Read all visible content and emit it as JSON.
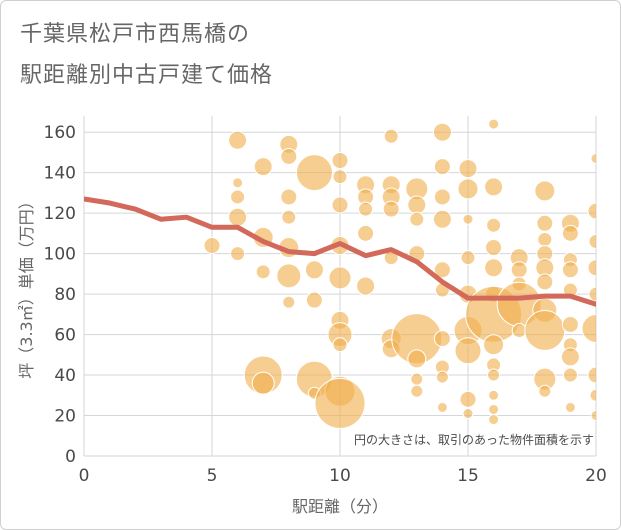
{
  "header": {
    "title_line1": "千葉県松戸市西馬橋の",
    "title_line2": "駅距離別中古戸建て価格"
  },
  "chart_data": {
    "type": "scatter",
    "xlabel": "駅距離（分）",
    "ylabel": "坪（3.3㎡）単価（万円）",
    "xlim": [
      0,
      20
    ],
    "ylim": [
      0,
      168
    ],
    "xticks": [
      0,
      5,
      10,
      15,
      20
    ],
    "yticks": [
      0,
      20,
      40,
      60,
      80,
      100,
      120,
      140,
      160
    ],
    "grid": true,
    "note": "円の大きさは、取引のあった物件面積を示す",
    "colors": {
      "bubble": "#f0b04f",
      "line": "#d2695a",
      "grid": "#d4d6da"
    },
    "line": {
      "x": [
        0,
        1,
        2,
        3,
        4,
        5,
        6,
        7,
        8,
        9,
        10,
        11,
        12,
        13,
        14,
        15,
        16,
        17,
        18,
        19,
        20
      ],
      "y": [
        127,
        125,
        122,
        117,
        118,
        113,
        113,
        106,
        101,
        100,
        105,
        99,
        102,
        96,
        86,
        78,
        78,
        78,
        79,
        79,
        75
      ]
    },
    "bubbles": [
      {
        "x": 5,
        "y": 104,
        "s": 8
      },
      {
        "x": 6,
        "y": 156,
        "s": 9
      },
      {
        "x": 6,
        "y": 135,
        "s": 5
      },
      {
        "x": 6,
        "y": 128,
        "s": 7
      },
      {
        "x": 6,
        "y": 118,
        "s": 9
      },
      {
        "x": 6,
        "y": 100,
        "s": 7
      },
      {
        "x": 7,
        "y": 143,
        "s": 9
      },
      {
        "x": 7,
        "y": 108,
        "s": 10
      },
      {
        "x": 7,
        "y": 91,
        "s": 7
      },
      {
        "x": 7,
        "y": 40,
        "s": 19
      },
      {
        "x": 7,
        "y": 36,
        "s": 11
      },
      {
        "x": 8,
        "y": 154,
        "s": 9
      },
      {
        "x": 8,
        "y": 148,
        "s": 8
      },
      {
        "x": 8,
        "y": 128,
        "s": 8
      },
      {
        "x": 8,
        "y": 118,
        "s": 7
      },
      {
        "x": 8,
        "y": 103,
        "s": 10
      },
      {
        "x": 8,
        "y": 89,
        "s": 12
      },
      {
        "x": 8,
        "y": 76,
        "s": 6
      },
      {
        "x": 9,
        "y": 140,
        "s": 18
      },
      {
        "x": 9,
        "y": 92,
        "s": 9
      },
      {
        "x": 9,
        "y": 77,
        "s": 8
      },
      {
        "x": 9,
        "y": 38,
        "s": 18
      },
      {
        "x": 9,
        "y": 31,
        "s": 6
      },
      {
        "x": 10,
        "y": 146,
        "s": 8
      },
      {
        "x": 10,
        "y": 138,
        "s": 7
      },
      {
        "x": 10,
        "y": 124,
        "s": 8
      },
      {
        "x": 10,
        "y": 104,
        "s": 9
      },
      {
        "x": 10,
        "y": 88,
        "s": 11
      },
      {
        "x": 10,
        "y": 67,
        "s": 9
      },
      {
        "x": 10,
        "y": 60,
        "s": 12
      },
      {
        "x": 10,
        "y": 55,
        "s": 7
      },
      {
        "x": 10,
        "y": 32,
        "s": 15
      },
      {
        "x": 10,
        "y": 26,
        "s": 25
      },
      {
        "x": 11,
        "y": 134,
        "s": 9
      },
      {
        "x": 11,
        "y": 128,
        "s": 8
      },
      {
        "x": 11,
        "y": 122,
        "s": 7
      },
      {
        "x": 11,
        "y": 110,
        "s": 8
      },
      {
        "x": 11,
        "y": 84,
        "s": 9
      },
      {
        "x": 12,
        "y": 158,
        "s": 7
      },
      {
        "x": 12,
        "y": 134,
        "s": 9
      },
      {
        "x": 12,
        "y": 128,
        "s": 9
      },
      {
        "x": 12,
        "y": 122,
        "s": 8
      },
      {
        "x": 12,
        "y": 98,
        "s": 7
      },
      {
        "x": 12,
        "y": 58,
        "s": 10
      },
      {
        "x": 12,
        "y": 53,
        "s": 9
      },
      {
        "x": 13,
        "y": 132,
        "s": 11
      },
      {
        "x": 13,
        "y": 124,
        "s": 9
      },
      {
        "x": 13,
        "y": 117,
        "s": 7
      },
      {
        "x": 13,
        "y": 100,
        "s": 8
      },
      {
        "x": 13,
        "y": 58,
        "s": 25
      },
      {
        "x": 13,
        "y": 48,
        "s": 9
      },
      {
        "x": 13,
        "y": 38,
        "s": 6
      },
      {
        "x": 13,
        "y": 32,
        "s": 6
      },
      {
        "x": 14,
        "y": 160,
        "s": 9
      },
      {
        "x": 14,
        "y": 143,
        "s": 8
      },
      {
        "x": 14,
        "y": 128,
        "s": 8
      },
      {
        "x": 14,
        "y": 117,
        "s": 9
      },
      {
        "x": 14,
        "y": 92,
        "s": 8
      },
      {
        "x": 14,
        "y": 82,
        "s": 7
      },
      {
        "x": 14,
        "y": 58,
        "s": 8
      },
      {
        "x": 14,
        "y": 44,
        "s": 7
      },
      {
        "x": 14,
        "y": 39,
        "s": 6
      },
      {
        "x": 14,
        "y": 24,
        "s": 5
      },
      {
        "x": 15,
        "y": 142,
        "s": 9
      },
      {
        "x": 15,
        "y": 132,
        "s": 10
      },
      {
        "x": 15,
        "y": 117,
        "s": 5
      },
      {
        "x": 15,
        "y": 98,
        "s": 7
      },
      {
        "x": 15,
        "y": 80,
        "s": 9
      },
      {
        "x": 15,
        "y": 62,
        "s": 14
      },
      {
        "x": 15,
        "y": 52,
        "s": 13
      },
      {
        "x": 15,
        "y": 28,
        "s": 8
      },
      {
        "x": 15,
        "y": 21,
        "s": 5
      },
      {
        "x": 16,
        "y": 164,
        "s": 5
      },
      {
        "x": 16,
        "y": 133,
        "s": 9
      },
      {
        "x": 16,
        "y": 114,
        "s": 7
      },
      {
        "x": 16,
        "y": 103,
        "s": 8
      },
      {
        "x": 16,
        "y": 93,
        "s": 9
      },
      {
        "x": 16,
        "y": 80,
        "s": 8
      },
      {
        "x": 16,
        "y": 70,
        "s": 28
      },
      {
        "x": 16,
        "y": 55,
        "s": 10
      },
      {
        "x": 16,
        "y": 45,
        "s": 7
      },
      {
        "x": 16,
        "y": 40,
        "s": 6
      },
      {
        "x": 16,
        "y": 30,
        "s": 5
      },
      {
        "x": 16,
        "y": 23,
        "s": 5
      },
      {
        "x": 16,
        "y": 18,
        "s": 5
      },
      {
        "x": 17,
        "y": 98,
        "s": 9
      },
      {
        "x": 17,
        "y": 92,
        "s": 8
      },
      {
        "x": 17,
        "y": 85,
        "s": 7
      },
      {
        "x": 17,
        "y": 75,
        "s": 22
      },
      {
        "x": 17,
        "y": 62,
        "s": 7
      },
      {
        "x": 18,
        "y": 131,
        "s": 10
      },
      {
        "x": 18,
        "y": 115,
        "s": 8
      },
      {
        "x": 18,
        "y": 107,
        "s": 7
      },
      {
        "x": 18,
        "y": 100,
        "s": 8
      },
      {
        "x": 18,
        "y": 93,
        "s": 9
      },
      {
        "x": 18,
        "y": 86,
        "s": 8
      },
      {
        "x": 18,
        "y": 72,
        "s": 12
      },
      {
        "x": 18,
        "y": 62,
        "s": 20
      },
      {
        "x": 18,
        "y": 38,
        "s": 11
      },
      {
        "x": 18,
        "y": 32,
        "s": 6
      },
      {
        "x": 19,
        "y": 115,
        "s": 9
      },
      {
        "x": 19,
        "y": 110,
        "s": 8
      },
      {
        "x": 19,
        "y": 97,
        "s": 7
      },
      {
        "x": 19,
        "y": 92,
        "s": 8
      },
      {
        "x": 19,
        "y": 82,
        "s": 7
      },
      {
        "x": 19,
        "y": 65,
        "s": 8
      },
      {
        "x": 19,
        "y": 55,
        "s": 7
      },
      {
        "x": 19,
        "y": 49,
        "s": 9
      },
      {
        "x": 19,
        "y": 40,
        "s": 7
      },
      {
        "x": 19,
        "y": 24,
        "s": 5
      },
      {
        "x": 20,
        "y": 147,
        "s": 5
      },
      {
        "x": 20,
        "y": 121,
        "s": 8
      },
      {
        "x": 20,
        "y": 106,
        "s": 7
      },
      {
        "x": 20,
        "y": 93,
        "s": 8
      },
      {
        "x": 20,
        "y": 80,
        "s": 7
      },
      {
        "x": 20,
        "y": 63,
        "s": 14
      },
      {
        "x": 20,
        "y": 40,
        "s": 8
      },
      {
        "x": 20,
        "y": 30,
        "s": 6
      },
      {
        "x": 20,
        "y": 20,
        "s": 5
      }
    ]
  }
}
